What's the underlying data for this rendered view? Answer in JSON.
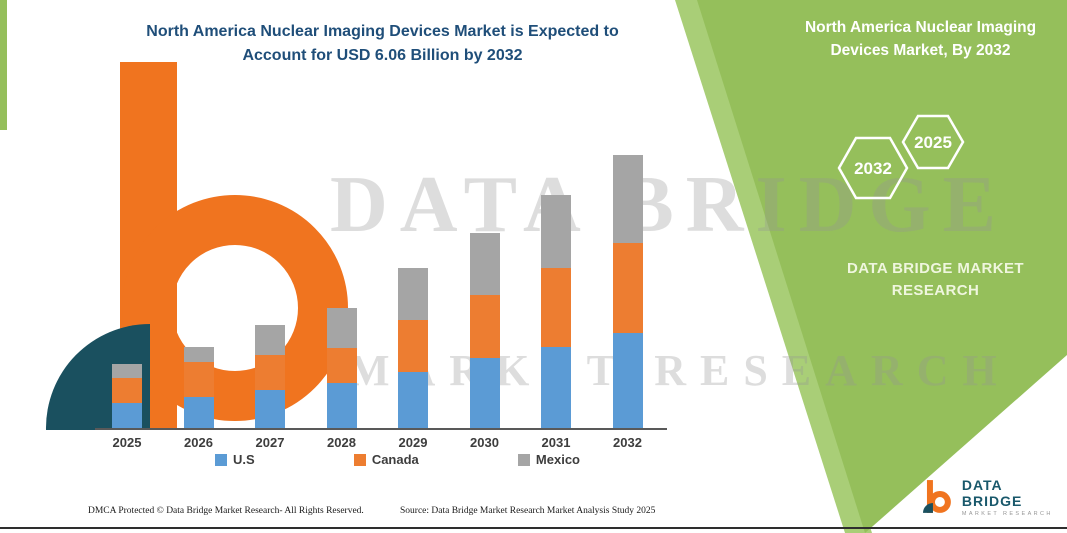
{
  "header": {
    "title_line1": "North America Nuclear Imaging Devices Market is Expected to",
    "title_line2": "Account for USD 6.06 Billion by 2032"
  },
  "side_panel": {
    "title": "North America Nuclear Imaging Devices Market, By 2032",
    "hexagons": [
      {
        "label": "2032"
      },
      {
        "label": "2025"
      }
    ],
    "brand_line1": "DATA BRIDGE MARKET",
    "brand_line2": "RESEARCH",
    "background_color": "#95bf5b",
    "accent_color": "#a9ce77"
  },
  "watermark": {
    "line1": "DATA BRIDGE",
    "line2": "MARKET RESEARCH"
  },
  "chart_data": {
    "type": "bar",
    "stacked": true,
    "title": "North America Nuclear Imaging Devices Market is Expected to Account for USD 6.06 Billion by 2032",
    "unit": "USD Billion",
    "categories": [
      "2025",
      "2026",
      "2027",
      "2028",
      "2029",
      "2030",
      "2031",
      "2032"
    ],
    "series": [
      {
        "name": "U.S",
        "color": "#5B9BD5",
        "values": [
          0.55,
          0.69,
          0.84,
          1.0,
          1.24,
          1.55,
          1.8,
          2.11
        ]
      },
      {
        "name": "Canada",
        "color": "#ED7D31",
        "values": [
          0.55,
          0.78,
          0.78,
          0.78,
          1.15,
          1.4,
          1.75,
          2.0
        ]
      },
      {
        "name": "Mexico",
        "color": "#A5A5A5",
        "values": [
          0.3,
          0.33,
          0.67,
          0.88,
          1.16,
          1.38,
          1.62,
          1.95
        ]
      }
    ],
    "totals": [
      1.4,
      1.8,
      2.29,
      2.66,
      3.55,
      4.33,
      5.17,
      6.06
    ],
    "ylim": [
      0,
      6.5
    ],
    "grid": false,
    "y_axis_visible": false,
    "legend_position": "bottom"
  },
  "footer": {
    "dmca": "DMCA Protected © Data Bridge Market Research-  All Rights Reserved.",
    "source": "Source: Data Bridge Market Research  Market Analysis Study 2025"
  },
  "logo": {
    "name": "DATA BRIDGE",
    "sub": "MARKET RESEARCH"
  }
}
